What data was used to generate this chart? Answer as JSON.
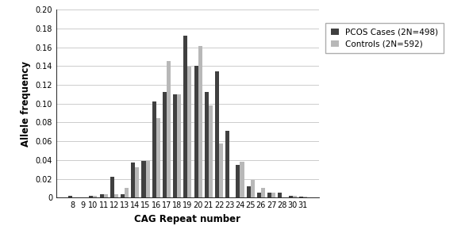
{
  "categories": [
    8,
    9,
    10,
    11,
    12,
    13,
    14,
    15,
    16,
    17,
    18,
    19,
    20,
    21,
    22,
    23,
    24,
    25,
    26,
    27,
    28,
    30,
    31
  ],
  "pcos_cases": [
    0.002,
    0.0,
    0.002,
    0.004,
    0.022,
    0.004,
    0.037,
    0.039,
    0.102,
    0.112,
    0.11,
    0.172,
    0.14,
    0.112,
    0.134,
    0.071,
    0.035,
    0.012,
    0.005,
    0.005,
    0.005,
    0.002,
    0.001
  ],
  "controls": [
    0.0,
    0.0,
    0.002,
    0.004,
    0.004,
    0.01,
    0.032,
    0.039,
    0.085,
    0.145,
    0.11,
    0.139,
    0.161,
    0.098,
    0.058,
    0.0,
    0.038,
    0.019,
    0.01,
    0.005,
    0.0,
    0.002,
    0.001
  ],
  "pcos_color": "#404040",
  "controls_color": "#b8b8b8",
  "xlabel": "CAG Repeat number",
  "ylabel": "Allele frequency",
  "ylim": [
    0,
    0.2
  ],
  "yticks": [
    0,
    0.02,
    0.04,
    0.06,
    0.08,
    0.1,
    0.12,
    0.14,
    0.16,
    0.18,
    0.2
  ],
  "legend_pcos": "PCOS Cases (2N=498)",
  "legend_controls": "Controls (2N=592)",
  "bar_width": 0.38,
  "figsize": [
    5.91,
    3.04
  ],
  "dpi": 100,
  "grid_color": "#cccccc",
  "background_color": "#ffffff"
}
